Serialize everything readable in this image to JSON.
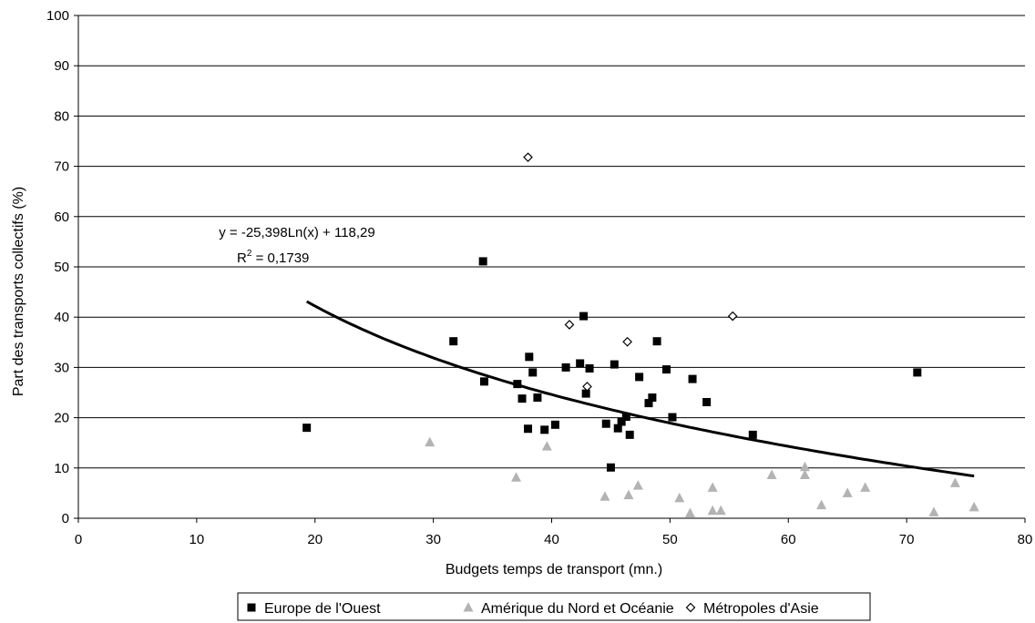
{
  "chart_data": {
    "type": "scatter",
    "title": "",
    "xlabel": "Budgets temps de transport (mn.)",
    "ylabel": "Part des transports collectifs (%)",
    "xlim": [
      0,
      80
    ],
    "ylim": [
      0,
      100
    ],
    "xticks": [
      "0",
      "10",
      "20",
      "30",
      "40",
      "50",
      "60",
      "70",
      "80"
    ],
    "yticks": [
      "0",
      "10",
      "20",
      "30",
      "40",
      "50",
      "60",
      "70",
      "80",
      "90",
      "100"
    ],
    "grid": "horizontal",
    "legend_position": "bottom",
    "series": [
      {
        "name": "Europe de l'Ouest",
        "marker": "square",
        "color": "#000000",
        "points": [
          [
            19.3,
            18.0
          ],
          [
            31.7,
            35.2
          ],
          [
            34.2,
            51.1
          ],
          [
            34.3,
            27.2
          ],
          [
            37.1,
            26.7
          ],
          [
            37.5,
            23.8
          ],
          [
            38.0,
            17.8
          ],
          [
            38.1,
            32.1
          ],
          [
            38.4,
            29.0
          ],
          [
            38.8,
            24.0
          ],
          [
            39.4,
            17.6
          ],
          [
            40.3,
            18.6
          ],
          [
            41.2,
            30.0
          ],
          [
            42.4,
            30.8
          ],
          [
            42.7,
            40.2
          ],
          [
            42.9,
            24.8
          ],
          [
            43.2,
            29.8
          ],
          [
            44.6,
            18.8
          ],
          [
            45.0,
            10.1
          ],
          [
            45.3,
            30.6
          ],
          [
            45.6,
            17.9
          ],
          [
            45.9,
            19.2
          ],
          [
            46.3,
            20.2
          ],
          [
            46.6,
            16.6
          ],
          [
            47.4,
            28.1
          ],
          [
            48.2,
            22.9
          ],
          [
            48.5,
            24.0
          ],
          [
            48.9,
            35.2
          ],
          [
            49.7,
            29.6
          ],
          [
            50.2,
            20.1
          ],
          [
            51.9,
            27.7
          ],
          [
            53.1,
            23.1
          ],
          [
            57.0,
            16.6
          ],
          [
            70.9,
            29.0
          ]
        ]
      },
      {
        "name": "Amérique du Nord et Océanie",
        "marker": "triangle",
        "color": "#b3b3b3",
        "points": [
          [
            29.7,
            15.1
          ],
          [
            37.0,
            8.1
          ],
          [
            39.6,
            14.3
          ],
          [
            44.5,
            4.3
          ],
          [
            46.5,
            4.6
          ],
          [
            47.3,
            6.5
          ],
          [
            50.8,
            4.0
          ],
          [
            51.7,
            1.0
          ],
          [
            53.6,
            6.1
          ],
          [
            53.6,
            1.5
          ],
          [
            54.3,
            1.5
          ],
          [
            58.6,
            8.6
          ],
          [
            61.4,
            10.2
          ],
          [
            61.4,
            8.6
          ],
          [
            62.8,
            2.6
          ],
          [
            65.0,
            5.0
          ],
          [
            66.5,
            6.1
          ],
          [
            72.3,
            1.2
          ],
          [
            74.1,
            7.0
          ],
          [
            75.7,
            2.2
          ]
        ]
      },
      {
        "name": "Métropoles d'Asie",
        "marker": "diamond",
        "color": "#000000",
        "points": [
          [
            38.0,
            71.8
          ],
          [
            41.5,
            38.5
          ],
          [
            43.0,
            26.2
          ],
          [
            46.4,
            35.1
          ],
          [
            55.3,
            40.2
          ]
        ]
      }
    ],
    "trendline": {
      "type": "logarithmic",
      "a": -25.398,
      "b": 118.29,
      "x_range": [
        19.3,
        75.7
      ],
      "equation_label": "y = -25,398Ln(x) + 118,29",
      "r2_prefix": "R",
      "r2_sup": "2",
      "r2_value": " = 0,1739"
    }
  }
}
